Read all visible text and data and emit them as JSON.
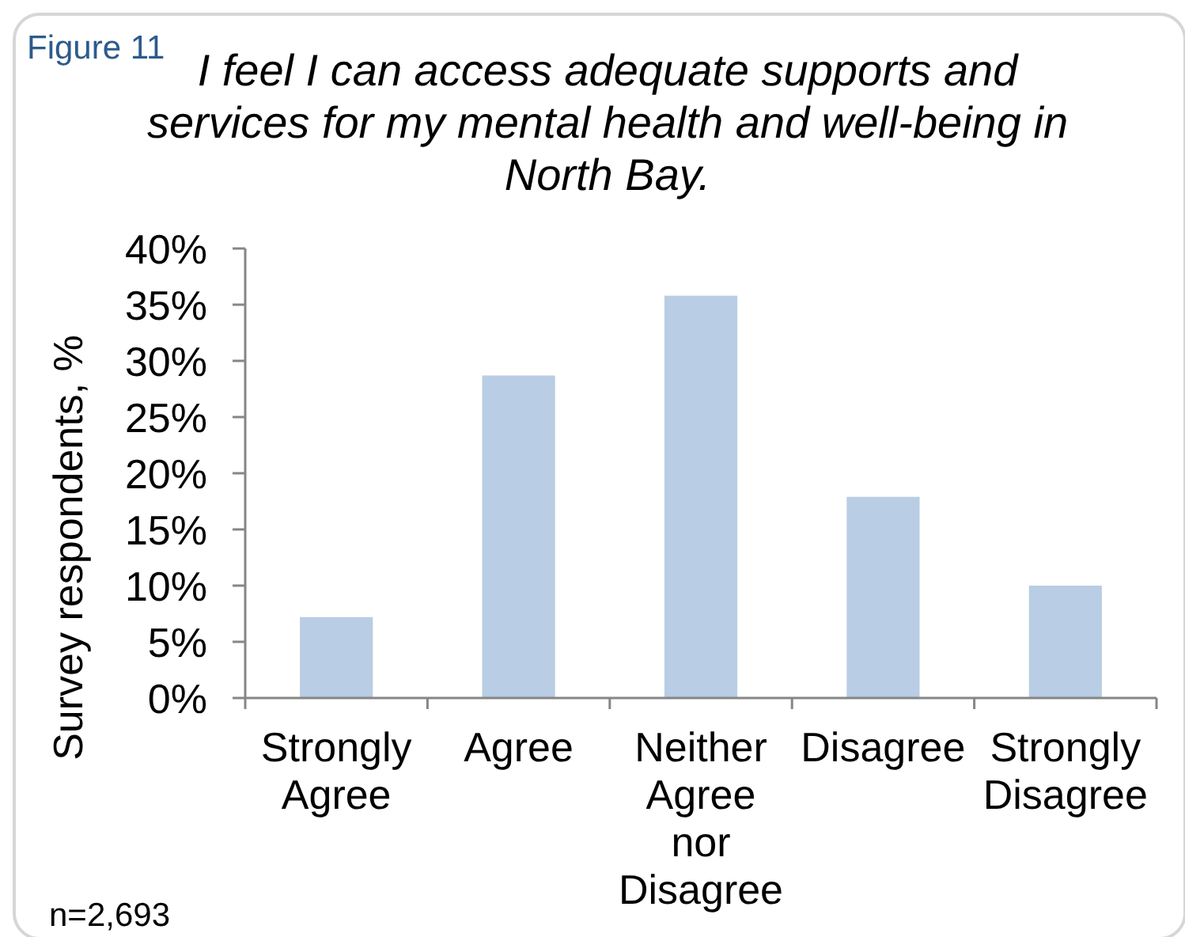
{
  "chart_data": {
    "type": "bar",
    "title": "I feel I can access adequate supports and services for my mental health and well-being in North Bay.",
    "ylabel": "Survey respondents, %",
    "annotations": [
      "Figure 11",
      "n=2,693"
    ],
    "categories": [
      "Strongly Agree",
      "Agree",
      "Neither Agree nor Disagree",
      "Disagree",
      "Strongly Disagree"
    ],
    "values": [
      7.2,
      28.7,
      35.8,
      17.9,
      10.0
    ],
    "color": "#b9cde4",
    "ylim": [
      0,
      40
    ],
    "yticks": [
      {
        "value": 0,
        "label": "0%"
      },
      {
        "value": 5,
        "label": "5%"
      },
      {
        "value": 10,
        "label": "10%"
      },
      {
        "value": 15,
        "label": "15%"
      },
      {
        "value": 20,
        "label": "20%"
      },
      {
        "value": 25,
        "label": "25%"
      },
      {
        "value": 30,
        "label": "30%"
      },
      {
        "value": 35,
        "label": "35%"
      },
      {
        "value": 40,
        "label": "40%"
      }
    ],
    "grid": false
  }
}
